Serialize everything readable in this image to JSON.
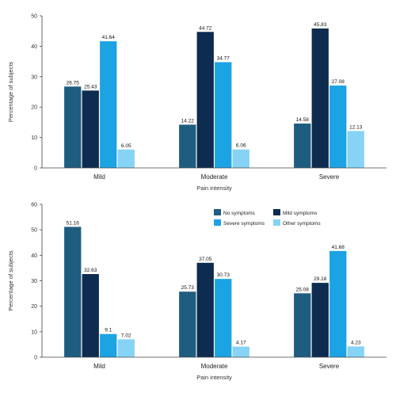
{
  "chart_data": [
    {
      "type": "bar",
      "categories": [
        "Mild",
        "Moderate",
        "Severe"
      ],
      "series": [
        {
          "name": "No symptoms",
          "values": [
            26.75,
            14.22,
            14.58
          ],
          "color": "#1f5d80"
        },
        {
          "name": "Mild symptoms",
          "values": [
            25.43,
            44.72,
            45.83
          ],
          "color": "#0d2c4f"
        },
        {
          "name": "Severe symptoms",
          "values": [
            41.64,
            34.77,
            27.08
          ],
          "color": "#1ba3e4"
        },
        {
          "name": "Other symptoms",
          "values": [
            6.05,
            6.06,
            12.13
          ],
          "color": "#86d3f5"
        }
      ],
      "data_labels": [
        [
          "26.75",
          "14.22",
          "14.58"
        ],
        [
          "25.43",
          "44.72",
          "45.83"
        ],
        [
          "41.64",
          "34.77",
          "27.08"
        ],
        [
          "6.05",
          "6.06",
          "12.13"
        ]
      ],
      "ylabel": "Percentage of subjects",
      "xlabel": "Pain intensity",
      "ylim": [
        0,
        50
      ],
      "yticks": [
        "0",
        "10",
        "20",
        "30",
        "40",
        "50"
      ],
      "grid": false,
      "legend": "none"
    },
    {
      "type": "bar",
      "categories": [
        "Mild",
        "Moderate",
        "Severe"
      ],
      "series": [
        {
          "name": "No symptoms",
          "values": [
            51.16,
            25.73,
            25.08
          ],
          "color": "#1f5d80"
        },
        {
          "name": "Mild symptoms",
          "values": [
            32.63,
            37.05,
            29.18
          ],
          "color": "#0d2c4f"
        },
        {
          "name": "Severe symptoms",
          "values": [
            9.1,
            30.73,
            41.68
          ],
          "color": "#1ba3e4"
        },
        {
          "name": "Other symptoms",
          "values": [
            7.02,
            4.17,
            4.23
          ],
          "color": "#86d3f5"
        }
      ],
      "data_labels": [
        [
          "51.16",
          "25.73",
          "25.08"
        ],
        [
          "32.63",
          "37.05",
          "29.18"
        ],
        [
          "9.1",
          "30.73",
          "41.68"
        ],
        [
          "7.02",
          "4.17",
          "4.23"
        ]
      ],
      "ylabel": "Percentage of subjects",
      "xlabel": "Pain intensity",
      "ylim": [
        0,
        60
      ],
      "yticks": [
        "0",
        "10",
        "20",
        "30",
        "40",
        "50",
        "60"
      ],
      "grid": false,
      "legend": "top-right",
      "legend_entries": [
        "No symptoms",
        "Mild symptoms",
        "Severe symptoms",
        "Other symptoms"
      ]
    }
  ]
}
